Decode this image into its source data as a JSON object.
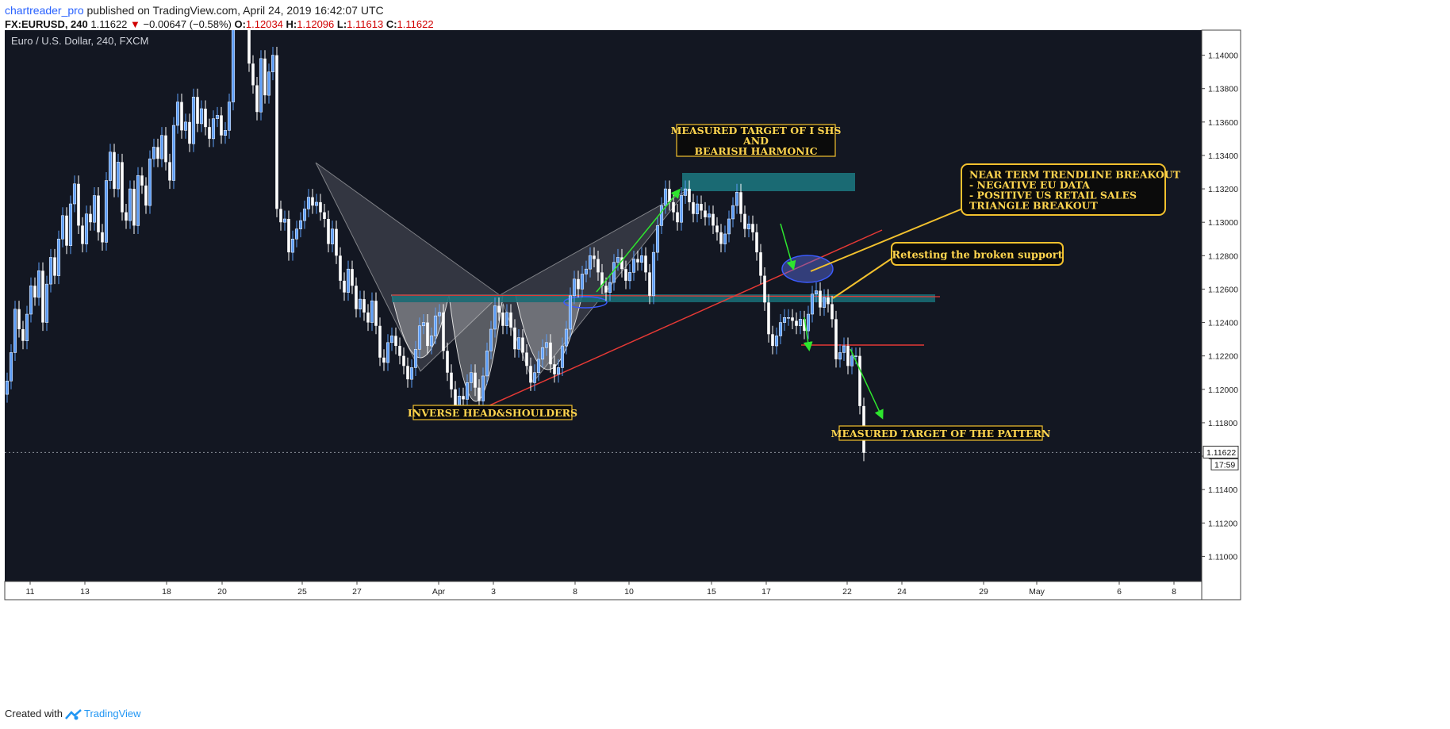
{
  "header": {
    "author": "chartreader_pro",
    "published_text": "published on TradingView.com, April 24, 2019 16:42:07 UTC",
    "symbol": "FX:EURUSD, 240",
    "last": "1.11622",
    "change": "−0.00647 (−0.58%)",
    "o_label": "O:",
    "o": "1.12034",
    "h_label": "H:",
    "h": "1.12096",
    "l_label": "L:",
    "l": "1.11613",
    "c_label": "C:",
    "c": "1.11622"
  },
  "footer": {
    "created_with": "Created with",
    "brand": "TradingView"
  },
  "colors": {
    "bg": "#131722",
    "up": "#5b9cf6",
    "down": "#ffffff",
    "accent_text": "#ffd54f",
    "zone": "#1a6a73",
    "trend": "#e53935",
    "arrow": "#2ee62e"
  },
  "chart_data": {
    "type": "candlestick",
    "title": "Euro / U.S. Dollar, 240, FXCM",
    "y_axis": {
      "min": 1.1085,
      "max": 1.1415,
      "ticks": [
        "1.14000",
        "1.13800",
        "1.13600",
        "1.13400",
        "1.13200",
        "1.13000",
        "1.12800",
        "1.12600",
        "1.12400",
        "1.12200",
        "1.12000",
        "1.11800",
        "1.11600",
        "1.11400",
        "1.11200",
        "1.11000"
      ]
    },
    "x_axis": {
      "ticks": [
        "11",
        "13",
        "18",
        "20",
        "25",
        "27",
        "Apr",
        "3",
        "8",
        "10",
        "15",
        "17",
        "22",
        "24",
        "29",
        "May",
        "6",
        "8"
      ]
    },
    "current_price": "1.11622",
    "countdown": "17:59",
    "closes": [
      1.1205,
      1.1222,
      1.1248,
      1.1236,
      1.1229,
      1.1245,
      1.1262,
      1.1255,
      1.1271,
      1.124,
      1.1263,
      1.1279,
      1.1268,
      1.129,
      1.1304,
      1.1286,
      1.1311,
      1.1323,
      1.1298,
      1.1287,
      1.1305,
      1.13,
      1.1316,
      1.1294,
      1.1288,
      1.1325,
      1.1342,
      1.132,
      1.1336,
      1.1306,
      1.1301,
      1.132,
      1.1298,
      1.1328,
      1.1322,
      1.131,
      1.1338,
      1.1345,
      1.1338,
      1.1352,
      1.1336,
      1.1325,
      1.1358,
      1.1372,
      1.1355,
      1.136,
      1.1347,
      1.1375,
      1.1359,
      1.1368,
      1.1357,
      1.135,
      1.1362,
      1.1364,
      1.1352,
      1.1355,
      1.1372,
      1.142,
      1.1445,
      1.146,
      1.1425,
      1.1395,
      1.1382,
      1.1366,
      1.1398,
      1.1376,
      1.139,
      1.14,
      1.1308,
      1.13,
      1.1302,
      1.1282,
      1.129,
      1.1296,
      1.1301,
      1.1308,
      1.1315,
      1.131,
      1.1312,
      1.1306,
      1.1302,
      1.1287,
      1.1296,
      1.128,
      1.1265,
      1.1258,
      1.1272,
      1.1262,
      1.1248,
      1.1254,
      1.1246,
      1.124,
      1.1253,
      1.1238,
      1.1219,
      1.1216,
      1.1228,
      1.1232,
      1.1226,
      1.122,
      1.1214,
      1.1206,
      1.1213,
      1.1224,
      1.1238,
      1.124,
      1.1226,
      1.1232,
      1.1244,
      1.1246,
      1.1223,
      1.121,
      1.12,
      1.1189,
      1.1196,
      1.1194,
      1.1204,
      1.121,
      1.1201,
      1.1193,
      1.1208,
      1.1223,
      1.1236,
      1.125,
      1.1246,
      1.1238,
      1.1246,
      1.1237,
      1.1224,
      1.1231,
      1.1222,
      1.1214,
      1.1204,
      1.121,
      1.1218,
      1.1225,
      1.1228,
      1.1215,
      1.1209,
      1.1213,
      1.1226,
      1.1236,
      1.1256,
      1.1266,
      1.126,
      1.1269,
      1.1272,
      1.128,
      1.1278,
      1.127,
      1.1262,
      1.1258,
      1.1264,
      1.1276,
      1.1279,
      1.1272,
      1.1265,
      1.127,
      1.1278,
      1.1276,
      1.128,
      1.127,
      1.1256,
      1.1282,
      1.1298,
      1.131,
      1.132,
      1.1312,
      1.1306,
      1.13,
      1.1316,
      1.132,
      1.1312,
      1.1305,
      1.1311,
      1.1307,
      1.1303,
      1.1305,
      1.1298,
      1.1294,
      1.1287,
      1.1293,
      1.1302,
      1.131,
      1.1318,
      1.1305,
      1.1296,
      1.1299,
      1.1294,
      1.1282,
      1.1268,
      1.1252,
      1.1233,
      1.1226,
      1.1232,
      1.124,
      1.1243,
      1.1243,
      1.1241,
      1.1238,
      1.1242,
      1.1235,
      1.1245,
      1.1257,
      1.1259,
      1.1249,
      1.1255,
      1.1251,
      1.1242,
      1.1218,
      1.1222,
      1.1226,
      1.1214,
      1.122,
      1.122,
      1.119,
      1.1162
    ],
    "annotations": [
      {
        "name": "annotation-ihs-target",
        "text": "MEASURED TARGET OF I SHS\nAND\nBEARISH HARMONIC"
      },
      {
        "name": "annotation-trendline-breakout",
        "text": "NEAR TERM TRENDLINE BREAKOUT\n- NEGATIVE EU DATA\n- POSITIVE US RETAIL SALES\nTRIANGLE BREAKOUT"
      },
      {
        "name": "annotation-retest",
        "text": "Retesting the broken support"
      },
      {
        "name": "annotation-ihs",
        "text": "INVERSE HEAD&SHOULDERS"
      },
      {
        "name": "annotation-pattern-target",
        "text": "MEASURED TARGET OF THE PATTERN"
      }
    ]
  }
}
